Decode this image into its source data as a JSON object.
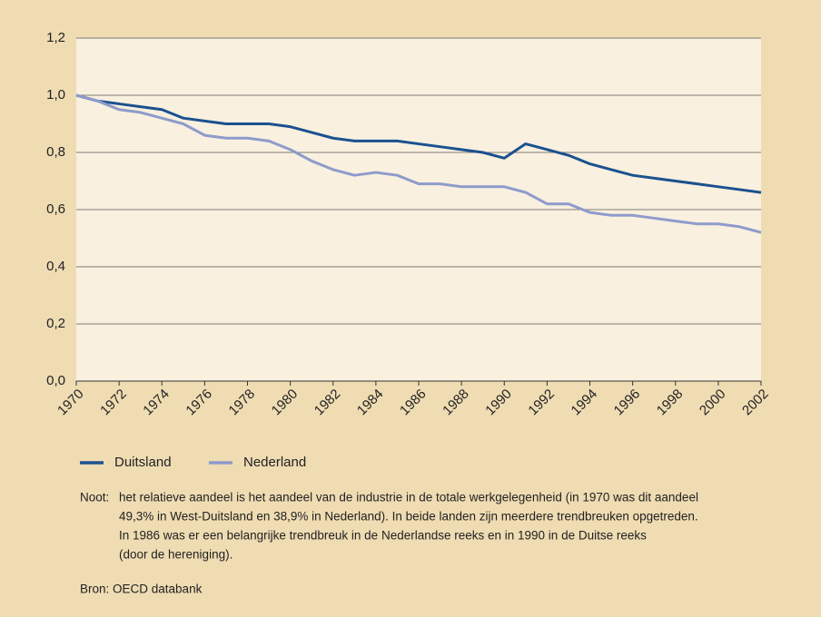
{
  "chart_data": {
    "type": "line",
    "x": [
      1970,
      1971,
      1972,
      1973,
      1974,
      1975,
      1976,
      1977,
      1978,
      1979,
      1980,
      1981,
      1982,
      1983,
      1984,
      1985,
      1986,
      1987,
      1988,
      1989,
      1990,
      1991,
      1992,
      1993,
      1994,
      1995,
      1996,
      1997,
      1998,
      1999,
      2000,
      2001,
      2002
    ],
    "series": [
      {
        "name": "Duitsland",
        "color": "#1b5190",
        "values": [
          1.0,
          0.98,
          0.97,
          0.96,
          0.95,
          0.92,
          0.91,
          0.9,
          0.9,
          0.9,
          0.89,
          0.87,
          0.85,
          0.84,
          0.84,
          0.84,
          0.83,
          0.82,
          0.81,
          0.8,
          0.78,
          0.83,
          0.81,
          0.79,
          0.76,
          0.74,
          0.72,
          0.71,
          0.7,
          0.69,
          0.68,
          0.67,
          0.66
        ]
      },
      {
        "name": "Nederland",
        "color": "#8e9bcb",
        "values": [
          1.0,
          0.98,
          0.95,
          0.94,
          0.92,
          0.9,
          0.86,
          0.85,
          0.85,
          0.84,
          0.81,
          0.77,
          0.74,
          0.72,
          0.73,
          0.72,
          0.69,
          0.69,
          0.68,
          0.68,
          0.68,
          0.66,
          0.62,
          0.62,
          0.59,
          0.58,
          0.58,
          0.57,
          0.56,
          0.55,
          0.55,
          0.54,
          0.52
        ]
      }
    ],
    "xlim": [
      1970,
      2002
    ],
    "xticks": [
      1970,
      1972,
      1974,
      1976,
      1978,
      1980,
      1982,
      1984,
      1986,
      1988,
      1990,
      1992,
      1994,
      1996,
      1998,
      2000,
      2002
    ],
    "ylim": [
      0,
      1.2
    ],
    "yticks": [
      {
        "value": 0,
        "label": "0,0"
      },
      {
        "value": 0.2,
        "label": "0,2"
      },
      {
        "value": 0.4,
        "label": "0,4"
      },
      {
        "value": 0.6,
        "label": "0,6"
      },
      {
        "value": 0.8,
        "label": "0,8"
      },
      {
        "value": 1.0,
        "label": "1,0"
      },
      {
        "value": 1.2,
        "label": "1,2"
      }
    ],
    "grid": true,
    "note": {
      "label": "Noot:",
      "lines": [
        "het relatieve aandeel is het aandeel van de industrie in de totale werkgelegenheid (in 1970 was dit aandeel",
        "49,3% in West-Duitsland en 38,9% in Nederland). In beide landen zijn meerdere trendbreuken opgetreden.",
        "In 1986 was er een belangrijke trendbreuk in de Nederlandse reeks en in 1990 in de Duitse reeks",
        "(door de hereniging)."
      ]
    },
    "source": "Bron: OECD databank"
  }
}
